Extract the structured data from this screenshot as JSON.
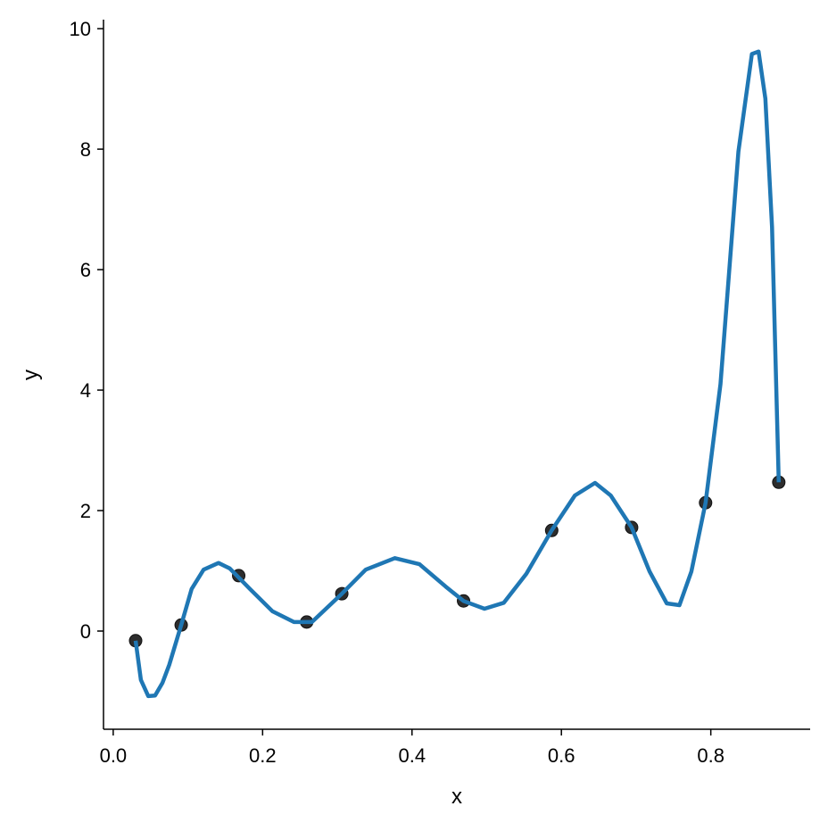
{
  "chart_data": {
    "type": "scatter",
    "title": "",
    "xlabel": "x",
    "ylabel": "y",
    "xlim": [
      -0.013,
      0.933
    ],
    "ylim": [
      -1.63,
      10.15
    ],
    "xticks": [
      0.0,
      0.2,
      0.4,
      0.6,
      0.8
    ],
    "xtick_labels": [
      "0.0",
      "0.2",
      "0.4",
      "0.6",
      "0.8"
    ],
    "yticks": [
      0,
      2,
      4,
      6,
      8,
      10
    ],
    "ytick_labels": [
      "0",
      "2",
      "4",
      "6",
      "8",
      "10"
    ],
    "grid": false,
    "colors": {
      "points": "#222222",
      "curve": "#1f77b4"
    },
    "points": {
      "x": [
        0.03,
        0.091,
        0.168,
        0.259,
        0.306,
        0.469,
        0.587,
        0.694,
        0.793,
        0.891
      ],
      "y": [
        -0.16,
        0.1,
        0.92,
        0.15,
        0.62,
        0.5,
        1.67,
        1.72,
        2.13,
        2.47
      ]
    },
    "curve": {
      "x": [
        0.03,
        0.037,
        0.047,
        0.056,
        0.066,
        0.075,
        0.091,
        0.105,
        0.121,
        0.141,
        0.156,
        0.183,
        0.213,
        0.242,
        0.266,
        0.306,
        0.338,
        0.377,
        0.41,
        0.445,
        0.469,
        0.497,
        0.523,
        0.553,
        0.587,
        0.618,
        0.645,
        0.666,
        0.694,
        0.718,
        0.741,
        0.758,
        0.774,
        0.793,
        0.813,
        0.837,
        0.855,
        0.864,
        0.873,
        0.882,
        0.891
      ],
      "y": [
        -0.16,
        -0.81,
        -1.08,
        -1.07,
        -0.86,
        -0.56,
        0.1,
        0.7,
        1.02,
        1.13,
        1.04,
        0.7,
        0.33,
        0.15,
        0.15,
        0.62,
        1.02,
        1.21,
        1.11,
        0.74,
        0.5,
        0.37,
        0.47,
        0.95,
        1.67,
        2.25,
        2.46,
        2.25,
        1.72,
        0.99,
        0.46,
        0.43,
        0.99,
        2.13,
        4.1,
        7.96,
        9.58,
        9.62,
        8.84,
        6.7,
        2.47
      ]
    }
  }
}
